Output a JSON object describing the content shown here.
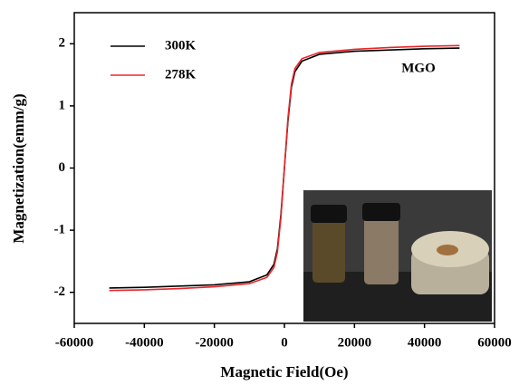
{
  "chart_data": {
    "type": "line",
    "x_label": "Magnetic Field(Oe)",
    "y_label": "Magnetization(emm/g)",
    "annotation": "MGO",
    "x": [
      -50000,
      -40000,
      -30000,
      -20000,
      -10000,
      -5000,
      -3000,
      -2000,
      -1000,
      0,
      1000,
      2000,
      3000,
      5000,
      10000,
      20000,
      30000,
      40000,
      50000
    ],
    "series": [
      {
        "name": "300K",
        "color": "#000000",
        "values": [
          -1.93,
          -1.92,
          -1.9,
          -1.88,
          -1.83,
          -1.72,
          -1.55,
          -1.3,
          -0.75,
          0,
          0.75,
          1.3,
          1.55,
          1.72,
          1.83,
          1.88,
          1.9,
          1.92,
          1.93
        ]
      },
      {
        "name": "278K",
        "color": "#e8262a",
        "values": [
          -1.97,
          -1.96,
          -1.94,
          -1.91,
          -1.86,
          -1.76,
          -1.6,
          -1.35,
          -0.8,
          0,
          0.8,
          1.35,
          1.6,
          1.76,
          1.86,
          1.91,
          1.94,
          1.96,
          1.97
        ]
      }
    ],
    "xlim": [
      -60000,
      60000
    ],
    "xticks": [
      -60000,
      -40000,
      -20000,
      0,
      20000,
      40000,
      60000
    ],
    "ylim": [
      -2.5,
      2.5
    ],
    "yticks": [
      -2,
      -1,
      0,
      1,
      2
    ],
    "legend": "upper left"
  }
}
